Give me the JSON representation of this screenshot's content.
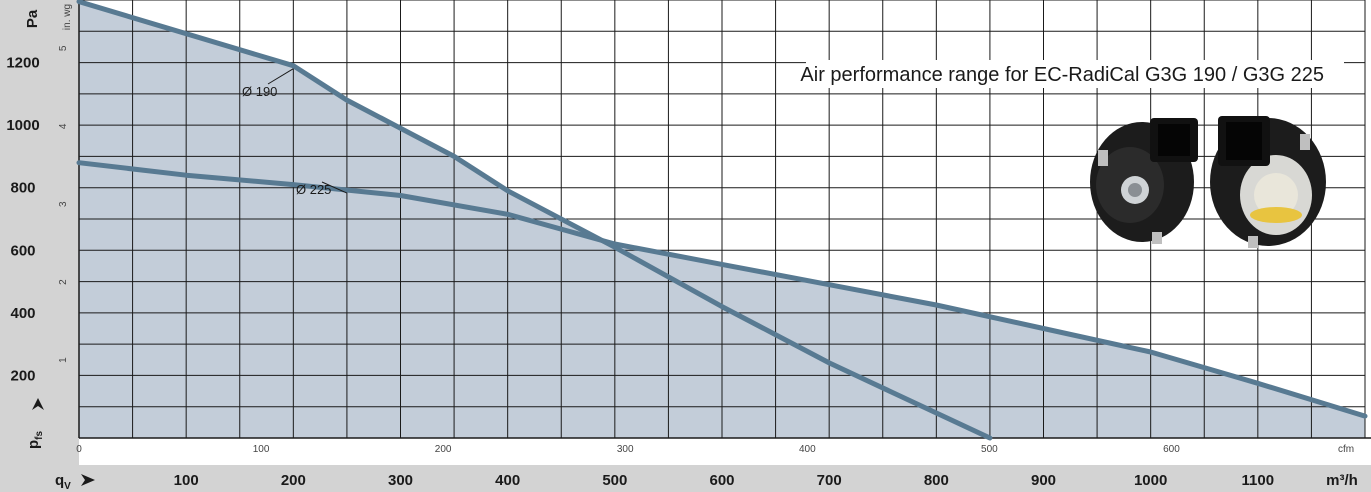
{
  "chart_data": {
    "type": "area",
    "title": "Air performance range for EC-RadiCal G3G 190 / G3G 225",
    "y_primary": {
      "unit": "Pa",
      "ticks": [
        200,
        400,
        600,
        800,
        1000,
        1200
      ],
      "range": [
        0,
        1400
      ]
    },
    "y_secondary": {
      "unit": "in. wg",
      "ticks": [
        1,
        2,
        3,
        4,
        5
      ]
    },
    "x_primary": {
      "unit": "m³/h",
      "ticks": [
        100,
        200,
        300,
        400,
        500,
        600,
        700,
        800,
        900,
        1000,
        1100
      ],
      "range": [
        0,
        1200
      ]
    },
    "x_secondary": {
      "unit": "cfm",
      "ticks": [
        0,
        100,
        200,
        300,
        400,
        500,
        600
      ]
    },
    "y_axis_symbol": {
      "base": "p",
      "sub": "fs"
    },
    "x_axis_symbol": {
      "base": "q",
      "sub": "V"
    },
    "series": [
      {
        "name": "Ø 190",
        "color": "#587a92",
        "x": [
          0,
          200,
          250,
          350,
          400,
          500,
          600,
          700,
          850
        ],
        "y": [
          1395,
          1190,
          1080,
          900,
          790,
          610,
          420,
          240,
          0
        ]
      },
      {
        "name": "Ø 225",
        "color": "#587a92",
        "x": [
          0,
          100,
          200,
          300,
          400,
          500,
          600,
          700,
          800,
          900,
          1000,
          1100,
          1200
        ],
        "y": [
          880,
          840,
          810,
          775,
          715,
          620,
          555,
          490,
          425,
          350,
          275,
          175,
          70
        ]
      }
    ],
    "fill_color": "#c3cdd9",
    "grid": true
  }
}
